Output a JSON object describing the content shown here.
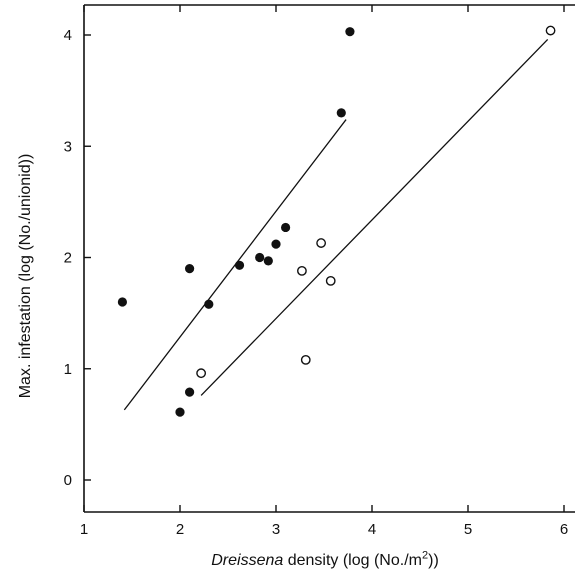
{
  "chart_data": {
    "type": "scatter",
    "xlabel_italic": "Dreissena",
    "xlabel_pre": " density (log (No./m",
    "xlabel_sup": "2",
    "xlabel_post": "))",
    "ylabel": "Max. infestation (log (No./unionid))",
    "xlim": [
      1,
      6.2
    ],
    "ylim": [
      0,
      4.3
    ],
    "xticks": [
      1,
      2,
      3,
      4,
      5,
      6
    ],
    "yticks": [
      0,
      1,
      2,
      3,
      4
    ],
    "grid": false,
    "series": [
      {
        "marker": "filled-circle",
        "points": [
          {
            "x": 1.4,
            "y": 1.6
          },
          {
            "x": 2.0,
            "y": 0.61
          },
          {
            "x": 2.1,
            "y": 0.79
          },
          {
            "x": 2.1,
            "y": 1.9
          },
          {
            "x": 2.3,
            "y": 1.58
          },
          {
            "x": 2.62,
            "y": 1.93
          },
          {
            "x": 2.83,
            "y": 2.0
          },
          {
            "x": 2.92,
            "y": 1.97
          },
          {
            "x": 3.0,
            "y": 2.12
          },
          {
            "x": 3.1,
            "y": 2.27
          },
          {
            "x": 3.68,
            "y": 3.3
          },
          {
            "x": 3.77,
            "y": 4.03
          }
        ],
        "fit": {
          "x": [
            1.42,
            3.73
          ],
          "y": [
            0.63,
            3.24
          ]
        }
      },
      {
        "marker": "open-circle",
        "points": [
          {
            "x": 2.22,
            "y": 0.96
          },
          {
            "x": 3.27,
            "y": 1.88
          },
          {
            "x": 3.31,
            "y": 1.08
          },
          {
            "x": 3.47,
            "y": 2.13
          },
          {
            "x": 3.57,
            "y": 1.79
          },
          {
            "x": 5.86,
            "y": 4.04
          }
        ],
        "fit": {
          "x": [
            2.22,
            5.83
          ],
          "y": [
            0.76,
            3.96
          ]
        }
      }
    ]
  }
}
